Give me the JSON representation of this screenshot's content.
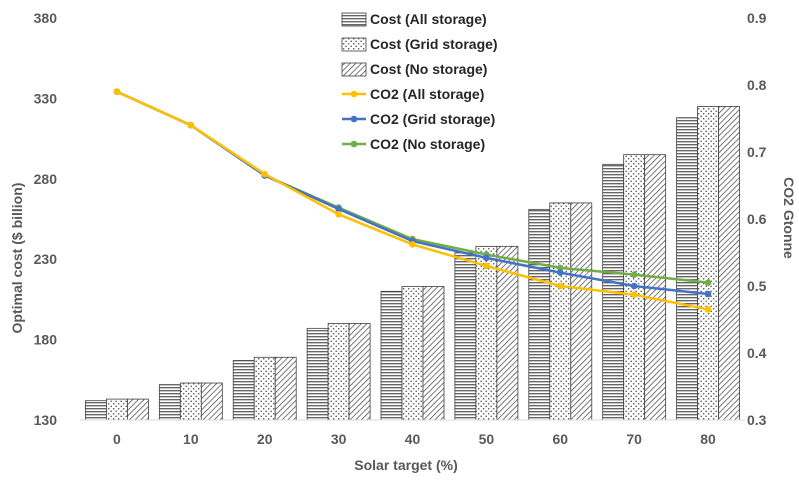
{
  "chart_data": {
    "type": "bar",
    "title": "",
    "xlabel": "Solar target (%)",
    "ylabel": "Optimal cost ($ billion)",
    "y2label": "CO2 Gtonne",
    "categories": [
      "0",
      "10",
      "20",
      "30",
      "40",
      "50",
      "60",
      "70",
      "80"
    ],
    "ylim": [
      130,
      380
    ],
    "yticks": [
      130,
      180,
      230,
      280,
      330,
      380
    ],
    "y2lim": [
      0.3,
      0.9
    ],
    "y2ticks": [
      "0.3",
      "0.4",
      "0.5",
      "0.6",
      "0.7",
      "0.8",
      "0.9"
    ],
    "grid": false,
    "legend_position": "top-center",
    "bar_series": [
      {
        "name": "Cost (All storage)",
        "pattern": "horizontal-lines",
        "values": [
          142,
          152,
          167,
          187,
          210,
          234,
          261,
          289,
          318
        ]
      },
      {
        "name": "Cost (Grid storage)",
        "pattern": "dots",
        "values": [
          143,
          153,
          169,
          190,
          213,
          238,
          265,
          295,
          325
        ]
      },
      {
        "name": "Cost (No storage)",
        "pattern": "diagonal-lines",
        "values": [
          143,
          153,
          169,
          190,
          213,
          238,
          265,
          295,
          325
        ]
      }
    ],
    "line_series": [
      {
        "name": "CO2 (All storage)",
        "color": "#FFC000",
        "values": [
          0.79,
          0.74,
          0.667,
          0.607,
          0.562,
          0.53,
          0.5,
          0.487,
          0.465
        ]
      },
      {
        "name": "CO2 (Grid storage)",
        "color": "#4472C4",
        "values": [
          0.79,
          0.74,
          0.665,
          0.615,
          0.567,
          0.542,
          0.52,
          0.5,
          0.488
        ]
      },
      {
        "name": "CO2 (No storage)",
        "color": "#70AD47",
        "values": [
          0.79,
          0.74,
          0.665,
          0.617,
          0.57,
          0.547,
          0.527,
          0.517,
          0.505
        ]
      }
    ]
  }
}
